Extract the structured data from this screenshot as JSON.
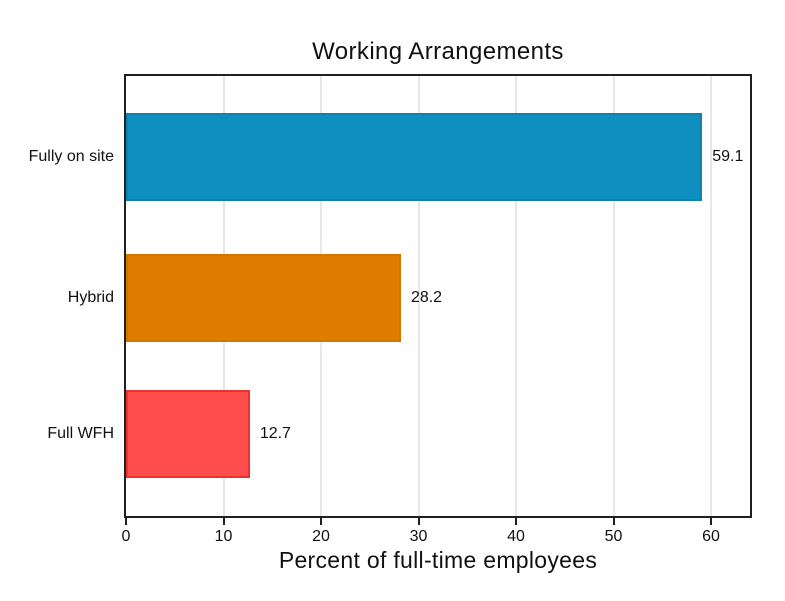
{
  "chart_data": {
    "type": "bar",
    "orientation": "horizontal",
    "title": "Working Arrangements",
    "xlabel": "Percent of full-time employees",
    "ylabel": "",
    "categories": [
      "Fully on site",
      "Hybrid",
      "Full WFH"
    ],
    "values": [
      59.1,
      28.2,
      12.7
    ],
    "value_labels": [
      "59.1",
      "28.2",
      "12.7"
    ],
    "bar_fill_colors": [
      "#0e8fbf",
      "#e07d00",
      "#ff4d4d"
    ],
    "bar_border_colors": [
      "#0d84ad",
      "#d37500",
      "#ea3232"
    ],
    "xlim": [
      0,
      64
    ],
    "xticks": [
      0,
      10,
      20,
      30,
      40,
      50,
      60
    ],
    "grid": "vertical",
    "gridline_color": "#e7e7e7",
    "frame_color": "#202020",
    "background": "#ffffff",
    "legend": "none",
    "value_label_position": "outside-right"
  }
}
